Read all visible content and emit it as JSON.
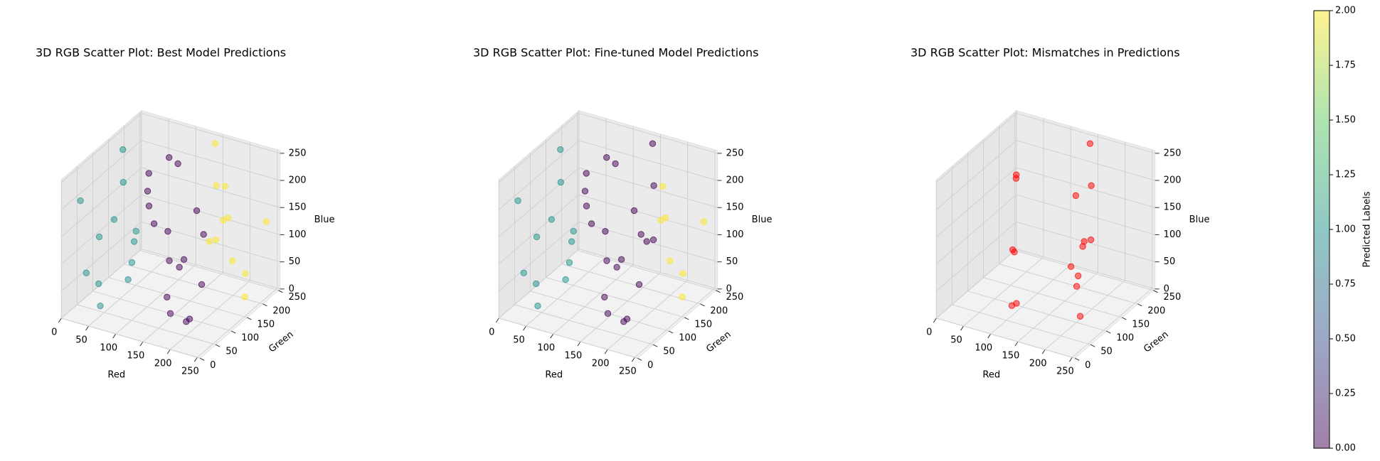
{
  "chart_data": [
    {
      "type": "scatter3d",
      "title": "3D RGB Scatter Plot: Best Model Predictions",
      "xlabel": "Red",
      "ylabel": "Green",
      "zlabel": "Blue",
      "xlim": [
        0,
        255
      ],
      "ylim": [
        0,
        255
      ],
      "zlim": [
        0,
        255
      ],
      "xticks": [
        0,
        50,
        100,
        150,
        200,
        250
      ],
      "yticks": [
        0,
        50,
        100,
        150,
        200,
        250
      ],
      "zticks": [
        0,
        50,
        100,
        150,
        200,
        250
      ],
      "cmap": "viridis",
      "alpha": 0.5,
      "grid": true,
      "x": [
        12,
        30,
        45,
        60,
        80,
        95,
        110,
        120,
        135,
        150,
        160,
        175,
        190,
        205,
        220,
        235,
        245,
        20,
        5,
        70,
        100,
        140,
        180,
        210,
        250,
        55,
        40,
        125,
        85,
        230,
        195,
        165,
        15,
        65,
        115,
        240,
        145,
        35,
        90,
        200
      ],
      "y": [
        40,
        180,
        90,
        20,
        140,
        60,
        200,
        30,
        110,
        230,
        70,
        150,
        10,
        190,
        90,
        40,
        160,
        240,
        110,
        250,
        170,
        250,
        210,
        130,
        220,
        200,
        10,
        120,
        50,
        10,
        60,
        245,
        170,
        100,
        80,
        100,
        180,
        60,
        220,
        240
      ],
      "z": [
        200,
        60,
        150,
        30,
        220,
        100,
        40,
        180,
        90,
        250,
        20,
        130,
        210,
        70,
        160,
        110,
        30,
        120,
        10,
        180,
        240,
        60,
        190,
        240,
        140,
        90,
        90,
        15,
        250,
        60,
        20,
        110,
        230,
        40,
        200,
        200,
        150,
        130,
        10,
        20
      ],
      "c": [
        1,
        1,
        1,
        1,
        0,
        1,
        0,
        1,
        0,
        2,
        0,
        0,
        0,
        2,
        2,
        0,
        2,
        0,
        1,
        0,
        0,
        2,
        2,
        2,
        2,
        0,
        1,
        0,
        1,
        0,
        0,
        2,
        1,
        1,
        0,
        2,
        0,
        1,
        0,
        2
      ]
    },
    {
      "type": "scatter3d",
      "title": "3D RGB Scatter Plot: Fine-tuned Model Predictions",
      "xlabel": "Red",
      "ylabel": "Green",
      "zlabel": "Blue",
      "xlim": [
        0,
        255
      ],
      "ylim": [
        0,
        255
      ],
      "zlim": [
        0,
        255
      ],
      "xticks": [
        0,
        50,
        100,
        150,
        200,
        250
      ],
      "yticks": [
        0,
        50,
        100,
        150,
        200,
        250
      ],
      "zticks": [
        0,
        50,
        100,
        150,
        200,
        250
      ],
      "cmap": "viridis",
      "alpha": 0.5,
      "grid": true,
      "x": [
        12,
        30,
        45,
        60,
        80,
        95,
        110,
        120,
        135,
        150,
        160,
        175,
        190,
        205,
        220,
        235,
        245,
        20,
        5,
        70,
        100,
        140,
        180,
        210,
        250,
        55,
        40,
        125,
        85,
        230,
        195,
        165,
        15,
        65,
        115,
        240,
        145,
        35,
        90,
        200
      ],
      "y": [
        40,
        180,
        90,
        20,
        140,
        60,
        200,
        30,
        110,
        230,
        70,
        150,
        10,
        190,
        90,
        40,
        160,
        240,
        110,
        250,
        170,
        250,
        210,
        130,
        220,
        200,
        10,
        120,
        50,
        10,
        60,
        245,
        170,
        100,
        80,
        100,
        180,
        60,
        220,
        240
      ],
      "z": [
        200,
        60,
        150,
        30,
        220,
        100,
        40,
        180,
        90,
        250,
        20,
        130,
        210,
        70,
        160,
        110,
        30,
        120,
        10,
        180,
        240,
        60,
        190,
        240,
        140,
        90,
        90,
        15,
        250,
        60,
        20,
        110,
        230,
        40,
        200,
        200,
        150,
        130,
        10,
        20
      ],
      "c": [
        1,
        1,
        1,
        1,
        0,
        1,
        0,
        1,
        0,
        0,
        0,
        0,
        0,
        2,
        0,
        0,
        2,
        0,
        1,
        0,
        0,
        0,
        2,
        0,
        2,
        0,
        1,
        0,
        1,
        0,
        0,
        2,
        1,
        1,
        0,
        2,
        0,
        1,
        0,
        2
      ]
    },
    {
      "type": "scatter3d",
      "title": "3D RGB Scatter Plot: Mismatches in Predictions",
      "xlabel": "Red",
      "ylabel": "Green",
      "zlabel": "Blue",
      "xlim": [
        0,
        255
      ],
      "ylim": [
        0,
        255
      ],
      "zlim": [
        0,
        255
      ],
      "xticks": [
        0,
        50,
        100,
        150,
        200,
        250
      ],
      "yticks": [
        0,
        50,
        100,
        150,
        200,
        250
      ],
      "zticks": [
        0,
        50,
        100,
        150,
        200,
        250
      ],
      "color": "#ff0000",
      "alpha": 0.5,
      "grid": true,
      "x": [
        130,
        100,
        60,
        20,
        110,
        80,
        150,
        220,
        210,
        140,
        190,
        170,
        230,
        160,
        200,
        180
      ],
      "y": [
        30,
        70,
        150,
        220,
        50,
        110,
        230,
        90,
        130,
        250,
        100,
        150,
        60,
        170,
        120,
        140
      ],
      "z": [
        50,
        120,
        200,
        160,
        30,
        90,
        250,
        160,
        240,
        60,
        100,
        200,
        40,
        20,
        130,
        60
      ]
    },
    {
      "type": "colorbar",
      "label": "Predicted Labels",
      "cmap": "viridis",
      "alpha": 0.5,
      "clim": [
        0,
        2
      ],
      "ticks": [
        {
          "value": 0,
          "label": "0.00"
        },
        {
          "value": 0.25,
          "label": "0.25"
        },
        {
          "value": 0.5,
          "label": "0.50"
        },
        {
          "value": 0.75,
          "label": "0.75"
        },
        {
          "value": 1,
          "label": "1.00"
        },
        {
          "value": 1.25,
          "label": "1.25"
        },
        {
          "value": 1.5,
          "label": "1.50"
        },
        {
          "value": 1.75,
          "label": "1.75"
        },
        {
          "value": 2,
          "label": "2.00"
        }
      ]
    }
  ]
}
